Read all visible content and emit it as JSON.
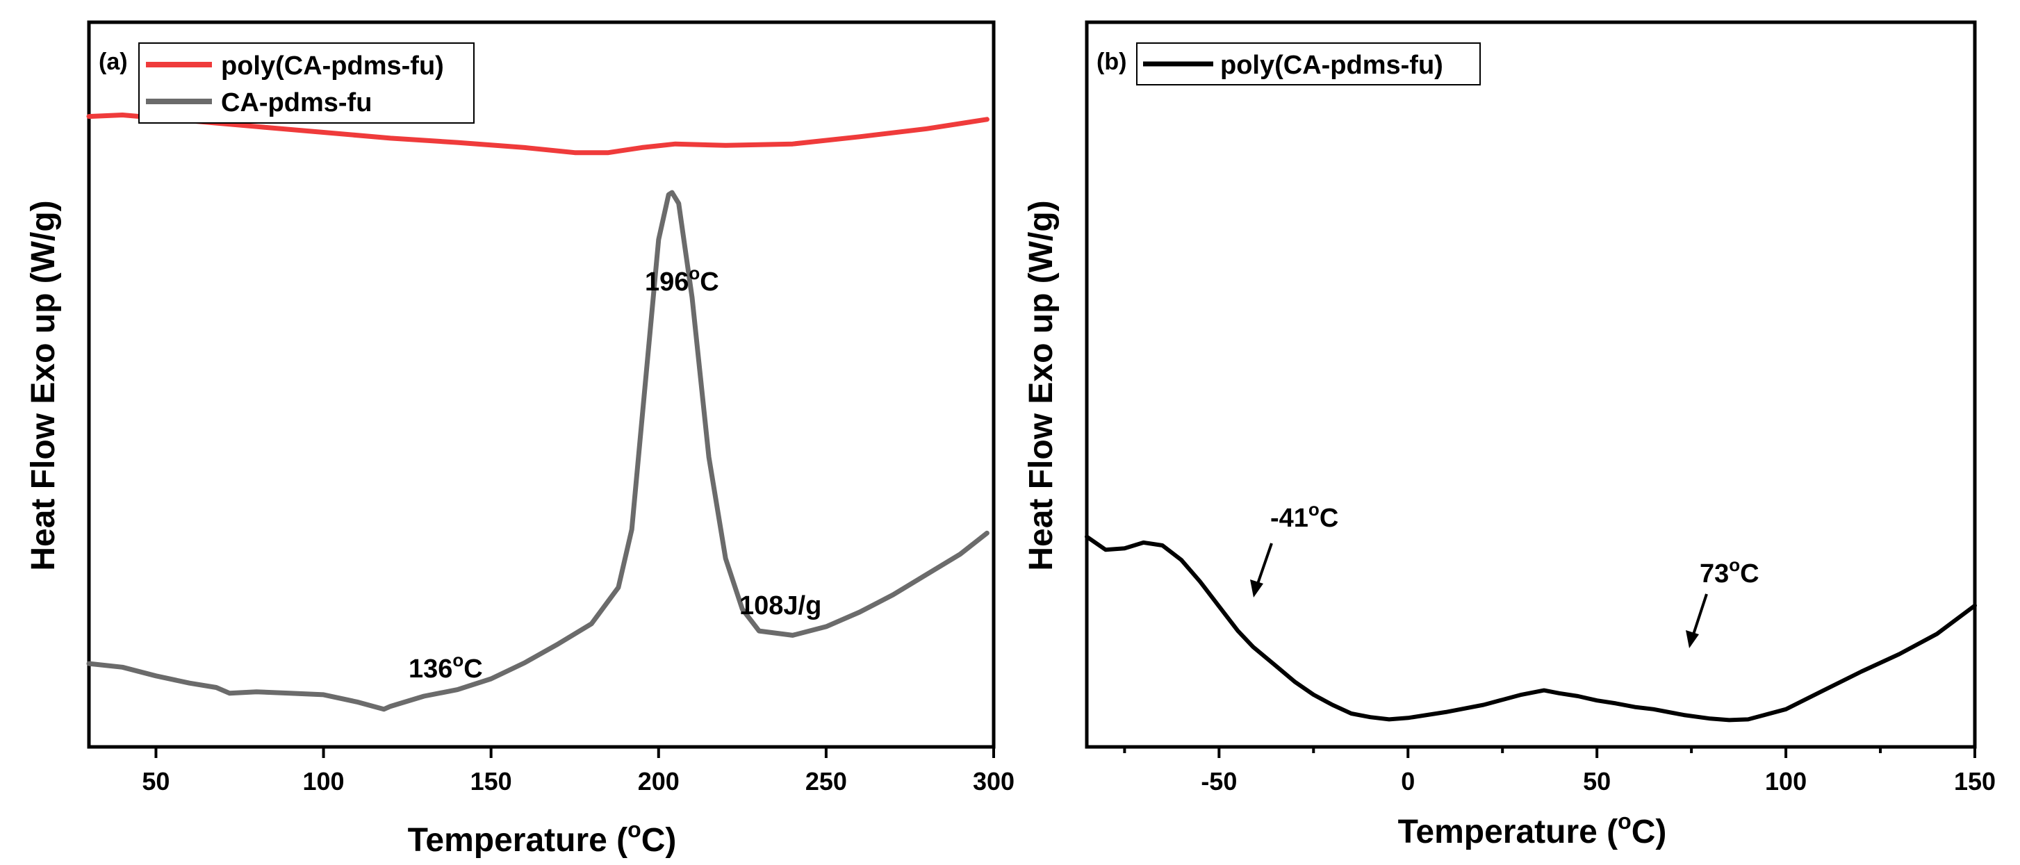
{
  "chart_data": [
    {
      "type": "line",
      "panel_label": "(a)",
      "title": "",
      "xlabel_main": "Temperature (",
      "xlabel_sup": "o",
      "xlabel_end": "C)",
      "ylabel": "Heat Flow Exo up (W/g)",
      "xlim": [
        30,
        300
      ],
      "ylim": [
        0,
        100
      ],
      "xticks": [
        50,
        100,
        150,
        200,
        250,
        300
      ],
      "xtick_labels": [
        "50",
        "100",
        "150",
        "200",
        "250",
        "300"
      ],
      "y_tick_labels_shown": false,
      "legend_position": "top-left",
      "series": [
        {
          "name": "poly(CA-pdms-fu)",
          "color": "#ef3b3b",
          "x": [
            30,
            40,
            60,
            80,
            100,
            120,
            140,
            160,
            175,
            185,
            195,
            205,
            220,
            240,
            260,
            280,
            298
          ],
          "y": [
            87.0,
            87.2,
            86.4,
            85.6,
            84.8,
            84.0,
            83.4,
            82.7,
            82.0,
            82.0,
            82.7,
            83.2,
            83.0,
            83.2,
            84.2,
            85.3,
            86.6
          ]
        },
        {
          "name": "CA-pdms-fu",
          "color": "#6b6b6b",
          "x": [
            30,
            40,
            50,
            60,
            68,
            72,
            80,
            90,
            100,
            110,
            118,
            120,
            130,
            140,
            150,
            160,
            170,
            180,
            188,
            192,
            196,
            200,
            203,
            204,
            206,
            210,
            215,
            220,
            225,
            230,
            240,
            250,
            260,
            270,
            280,
            290,
            298
          ],
          "y": [
            11.5,
            11.0,
            9.8,
            8.8,
            8.2,
            7.4,
            7.6,
            7.4,
            7.2,
            6.2,
            5.2,
            5.6,
            7.0,
            7.9,
            9.4,
            11.6,
            14.2,
            17.0,
            22.0,
            30.0,
            50.0,
            70.0,
            76.2,
            76.5,
            75.0,
            62.0,
            40.0,
            26.0,
            19.0,
            16.0,
            15.4,
            16.6,
            18.6,
            21.0,
            23.8,
            26.6,
            29.5
          ]
        }
      ],
      "annotations": [
        {
          "id": "peak",
          "text": "196",
          "sup": "o",
          "text_end": "C"
        },
        {
          "id": "onset",
          "text": "136",
          "sup": "o",
          "text_end": "C"
        },
        {
          "id": "enthalpy",
          "text": "108J/g"
        }
      ]
    },
    {
      "type": "line",
      "panel_label": "(b)",
      "title": "",
      "xlabel_main": "Temperature (",
      "xlabel_sup": "o",
      "xlabel_end": "C)",
      "ylabel": "Heat Flow Exo up (W/g)",
      "xlim": [
        -85,
        150
      ],
      "ylim": [
        0,
        100
      ],
      "xticks": [
        -50,
        0,
        50,
        100,
        150
      ],
      "xtick_labels": [
        "-50",
        "0",
        "50",
        "100",
        "150"
      ],
      "y_tick_labels_shown": false,
      "legend_position": "top-left",
      "series": [
        {
          "name": "poly(CA-pdms-fu)",
          "color": "#000000",
          "x": [
            -85,
            -80,
            -75,
            -70,
            -65,
            -60,
            -55,
            -50,
            -45,
            -41,
            -35,
            -30,
            -25,
            -20,
            -15,
            -10,
            -5,
            0,
            10,
            20,
            30,
            36,
            40,
            45,
            50,
            55,
            60,
            65,
            70,
            73,
            80,
            85,
            90,
            100,
            110,
            120,
            130,
            140,
            150
          ],
          "y": [
            29.0,
            27.2,
            27.4,
            28.2,
            27.8,
            25.8,
            22.8,
            19.4,
            16.0,
            13.8,
            11.2,
            9.0,
            7.2,
            5.8,
            4.6,
            4.1,
            3.8,
            4.0,
            4.8,
            5.8,
            7.2,
            7.8,
            7.4,
            7.0,
            6.4,
            6.0,
            5.5,
            5.2,
            4.7,
            4.4,
            3.9,
            3.7,
            3.8,
            5.2,
            7.8,
            10.4,
            12.8,
            15.6,
            19.5
          ]
        }
      ],
      "annotations": [
        {
          "id": "glass1",
          "text": "-41",
          "sup": "o",
          "text_end": "C"
        },
        {
          "id": "glass2",
          "text": "73",
          "sup": "o",
          "text_end": "C"
        }
      ]
    }
  ]
}
